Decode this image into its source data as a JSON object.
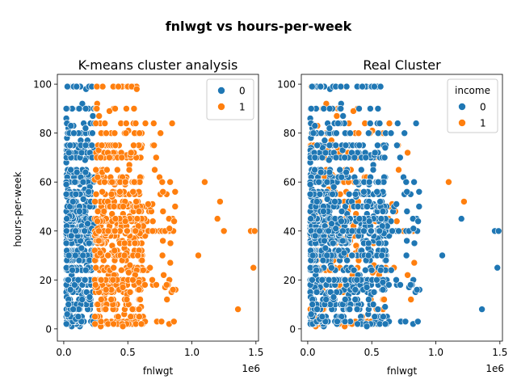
{
  "figure": {
    "suptitle": "fnlwgt vs hours-per-week"
  },
  "colors": {
    "0": "#1f77b4",
    "1": "#ff7f0e"
  },
  "chart_data": [
    {
      "type": "scatter",
      "title": "K-means cluster analysis",
      "xlabel": "fnlwgt",
      "ylabel": "hours-per-week",
      "offset_label": "1e6",
      "xlim": [
        -0.05,
        1.52
      ],
      "ylim": [
        -5,
        104
      ],
      "xticks": [
        0.0,
        0.5,
        1.0,
        1.5
      ],
      "xtick_labels": [
        "0.0",
        "0.5",
        "1.0",
        "1.5"
      ],
      "yticks": [
        0,
        20,
        40,
        60,
        80,
        100
      ],
      "ytick_labels": [
        "0",
        "20",
        "40",
        "60",
        "80",
        "100"
      ],
      "legend": {
        "title": "",
        "placement": "top-right",
        "entries": [
          {
            "label": "0",
            "group": "0"
          },
          {
            "label": "1",
            "group": "1"
          }
        ]
      },
      "rule": "cluster 0 when fnlwgt < 0.24",
      "notable_points": [
        {
          "x": 1.36,
          "y": 8,
          "group": "1"
        },
        {
          "x": 1.48,
          "y": 25,
          "group": "1"
        },
        {
          "x": 1.46,
          "y": 40,
          "group": "1"
        },
        {
          "x": 1.49,
          "y": 40,
          "group": "1"
        },
        {
          "x": 1.22,
          "y": 52,
          "group": "1"
        },
        {
          "x": 1.1,
          "y": 60,
          "group": "1"
        },
        {
          "x": 1.05,
          "y": 30,
          "group": "1"
        },
        {
          "x": 1.2,
          "y": 45,
          "group": "1"
        },
        {
          "x": 1.25,
          "y": 40,
          "group": "1"
        },
        {
          "x": 0.53,
          "y": 99,
          "group": "1"
        },
        {
          "x": 0.57,
          "y": 98,
          "group": "1"
        },
        {
          "x": 0.1,
          "y": 99,
          "group": "0"
        }
      ]
    },
    {
      "type": "scatter",
      "title": "Real Cluster",
      "xlabel": "fnlwgt",
      "ylabel": "",
      "offset_label": "1e6",
      "xlim": [
        -0.05,
        1.52
      ],
      "ylim": [
        -5,
        104
      ],
      "xticks": [
        0.0,
        0.5,
        1.0,
        1.5
      ],
      "xtick_labels": [
        "0.0",
        "0.5",
        "1.0",
        "1.5"
      ],
      "yticks": [
        0,
        20,
        40,
        60,
        80,
        100
      ],
      "ytick_labels": [
        "0",
        "20",
        "40",
        "60",
        "80",
        "100"
      ],
      "legend": {
        "title": "income",
        "placement": "top-right",
        "entries": [
          {
            "label": "0",
            "group": "0"
          },
          {
            "label": "1",
            "group": "1"
          }
        ]
      },
      "rule": "income group",
      "notable_points": [
        {
          "x": 1.36,
          "y": 8,
          "group": "0"
        },
        {
          "x": 1.48,
          "y": 25,
          "group": "0"
        },
        {
          "x": 1.46,
          "y": 40,
          "group": "0"
        },
        {
          "x": 1.49,
          "y": 40,
          "group": "0"
        },
        {
          "x": 1.22,
          "y": 52,
          "group": "1"
        },
        {
          "x": 1.1,
          "y": 60,
          "group": "1"
        },
        {
          "x": 1.05,
          "y": 30,
          "group": "0"
        },
        {
          "x": 1.2,
          "y": 45,
          "group": "0"
        },
        {
          "x": 0.78,
          "y": 72,
          "group": "1"
        },
        {
          "x": 0.52,
          "y": 99,
          "group": "0"
        },
        {
          "x": 0.65,
          "y": 80,
          "group": "0"
        },
        {
          "x": 0.1,
          "y": 99,
          "group": "0"
        }
      ]
    }
  ]
}
